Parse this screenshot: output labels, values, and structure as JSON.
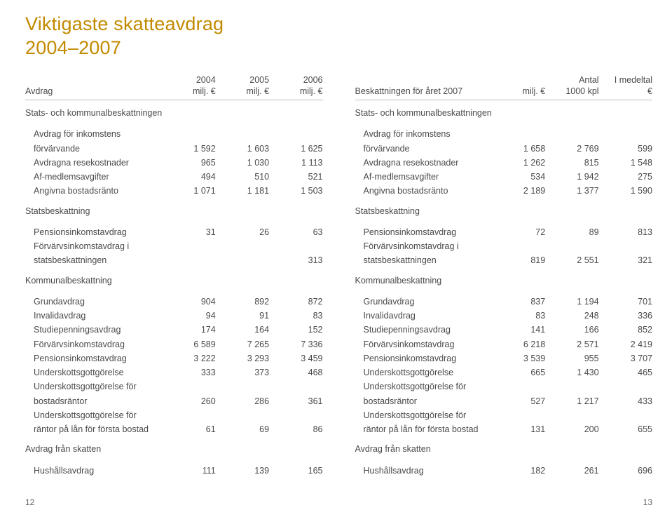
{
  "title_l1": "Viktigaste skatteavdrag",
  "title_l2": "2004–2007",
  "pg_left": "12",
  "pg_right": "13",
  "left": {
    "header": {
      "c0": "Avdrag",
      "c1_top": "2004",
      "c1_bot": "milj. €",
      "c2_top": "2005",
      "c2_bot": "milj. €",
      "c3_top": "2006",
      "c3_bot": "milj. €"
    },
    "sec1": "Stats- och kommunalbeskattningen",
    "sub1": "Avdrag för inkomstens",
    "rows1": [
      {
        "label": "förvärvande",
        "v": [
          "1 592",
          "1 603",
          "1 625"
        ]
      },
      {
        "label": "Avdragna resekostnader",
        "v": [
          "965",
          "1 030",
          "1 113"
        ]
      },
      {
        "label": "Af-medlemsavgifter",
        "v": [
          "494",
          "510",
          "521"
        ]
      },
      {
        "label": "Angivna bostadsränto",
        "v": [
          "1 071",
          "1 181",
          "1 503"
        ]
      }
    ],
    "sec2": "Statsbeskattning",
    "rows2a": {
      "label": "Pensionsinkomstavdrag",
      "v": [
        "31",
        "26",
        "63"
      ]
    },
    "rows2b_l1": "Förvärvsinkomstavdrag i",
    "rows2b_l2": "statsbeskattningen",
    "rows2b_v": [
      "",
      "",
      "313"
    ],
    "sec3": "Kommunalbeskattning",
    "rows3": [
      {
        "label": "Grundavdrag",
        "v": [
          "904",
          "892",
          "872"
        ]
      },
      {
        "label": "Invalidavdrag",
        "v": [
          "94",
          "91",
          "83"
        ]
      },
      {
        "label": "Studiepenningsavdrag",
        "v": [
          "174",
          "164",
          "152"
        ]
      },
      {
        "label": "Förvärvsinkomstavdrag",
        "v": [
          "6 589",
          "7 265",
          "7 336"
        ]
      },
      {
        "label": "Pensionsinkomstavdrag",
        "v": [
          "3 222",
          "3 293",
          "3 459"
        ]
      },
      {
        "label": "Underskottsgottgörelse",
        "v": [
          "333",
          "373",
          "468"
        ]
      }
    ],
    "wrap3a_l1": "Underskottsgottgörelse för",
    "wrap3a_l2": "bostadsräntor",
    "wrap3a_v": [
      "260",
      "286",
      "361"
    ],
    "wrap3b_l1": "Underskottsgottgörelse för",
    "wrap3b_l2": "räntor på lån för första bostad",
    "wrap3b_v": [
      "61",
      "69",
      "86"
    ],
    "sec4": "Avdrag från skatten",
    "rows4": {
      "label": "Hushållsavdrag",
      "v": [
        "111",
        "139",
        "165"
      ]
    }
  },
  "right": {
    "header": {
      "c0": "Beskattningen för året 2007",
      "c1_top": "",
      "c1_bot": "milj. €",
      "c2_top": "Antal",
      "c2_bot": "1000 kpl",
      "c3_top": "I medeltal",
      "c3_bot": "€"
    },
    "sec1": "Stats- och kommunalbeskattningen",
    "sub1": "Avdrag för inkomstens",
    "rows1": [
      {
        "label": "förvärvande",
        "v": [
          "1 658",
          "2 769",
          "599"
        ]
      },
      {
        "label": "Avdragna resekostnader",
        "v": [
          "1 262",
          "815",
          "1 548"
        ]
      },
      {
        "label": "Af-medlemsavgifter",
        "v": [
          "534",
          "1 942",
          "275"
        ]
      },
      {
        "label": "Angivna bostadsränto",
        "v": [
          "2 189",
          "1 377",
          "1 590"
        ]
      }
    ],
    "sec2": "Statsbeskattning",
    "rows2a": {
      "label": "Pensionsinkomstavdrag",
      "v": [
        "72",
        "89",
        "813"
      ]
    },
    "rows2b_l1": "Förvärvsinkomstavdrag i",
    "rows2b_l2": "statsbeskattningen",
    "rows2b_v": [
      "819",
      "2 551",
      "321"
    ],
    "sec3": "Kommunalbeskattning",
    "rows3": [
      {
        "label": "Grundavdrag",
        "v": [
          "837",
          "1 194",
          "701"
        ]
      },
      {
        "label": "Invalidavdrag",
        "v": [
          "83",
          "248",
          "336"
        ]
      },
      {
        "label": "Studiepenningsavdrag",
        "v": [
          "141",
          "166",
          "852"
        ]
      },
      {
        "label": "Förvärvsinkomstavdrag",
        "v": [
          "6 218",
          "2 571",
          "2 419"
        ]
      },
      {
        "label": "Pensionsinkomstavdrag",
        "v": [
          "3 539",
          "955",
          "3 707"
        ]
      },
      {
        "label": "Underskottsgottgörelse",
        "v": [
          "665",
          "1 430",
          "465"
        ]
      }
    ],
    "wrap3a_l1": "Underskottsgottgörelse för",
    "wrap3a_l2": "bostadsräntor",
    "wrap3a_v": [
      "527",
      "1 217",
      "433"
    ],
    "wrap3b_l1": "Underskottsgottgörelse för",
    "wrap3b_l2": "räntor på lån för första bostad",
    "wrap3b_v": [
      "131",
      "200",
      "655"
    ],
    "sec4": "Avdrag från skatten",
    "rows4": {
      "label": "Hushållsavdrag",
      "v": [
        "182",
        "261",
        "696"
      ]
    }
  }
}
